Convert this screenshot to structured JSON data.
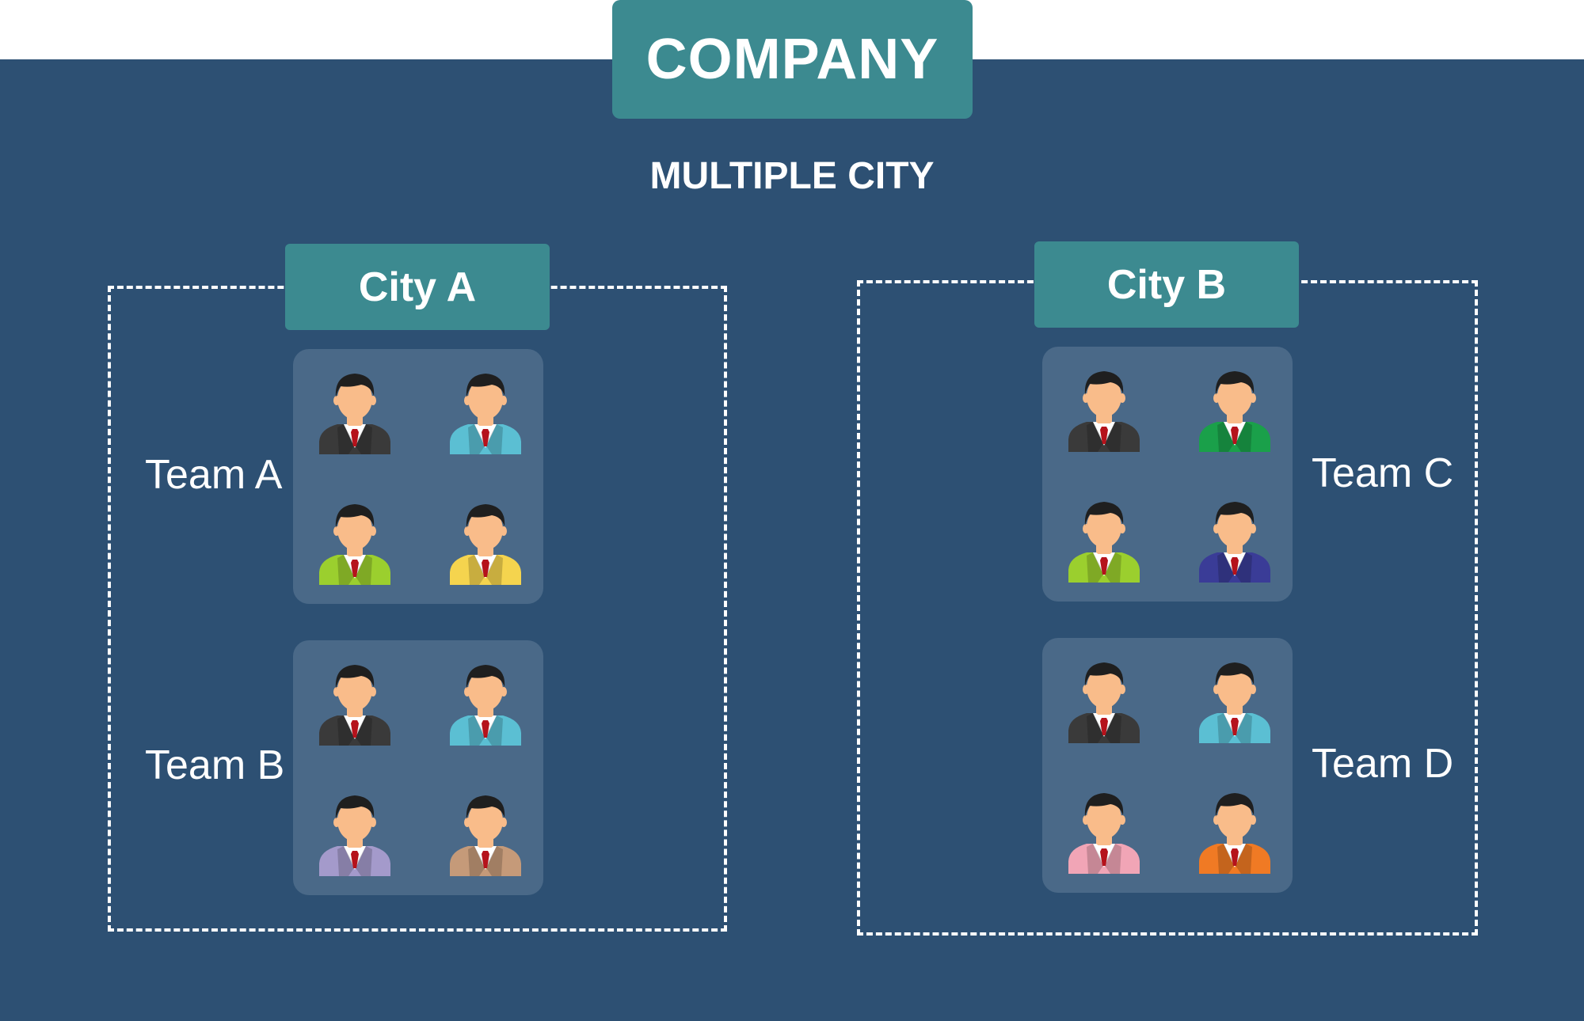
{
  "header": {
    "company": "COMPANY",
    "subtitle": "MULTIPLE CITY"
  },
  "colors": {
    "background": "#2d5073",
    "accent": "#3c8a90",
    "team_panel": "#4a6988",
    "skin": "#f9bc8a",
    "hair": "#1f1f1f",
    "tie": "#b5121b"
  },
  "cities": [
    {
      "name": "City A",
      "teams": [
        {
          "name": "Team A",
          "people": [
            {
              "icon": "person-icon",
              "suit_color": "#3a3a3a"
            },
            {
              "icon": "person-icon",
              "suit_color": "#5bbfd3"
            },
            {
              "icon": "person-icon",
              "suit_color": "#9bcf2e"
            },
            {
              "icon": "person-icon",
              "suit_color": "#f5d44e"
            }
          ]
        },
        {
          "name": "Team B",
          "people": [
            {
              "icon": "person-icon",
              "suit_color": "#3a3a3a"
            },
            {
              "icon": "person-icon",
              "suit_color": "#5bbfd3"
            },
            {
              "icon": "person-icon",
              "suit_color": "#a49acb"
            },
            {
              "icon": "person-icon",
              "suit_color": "#c59a79"
            }
          ]
        }
      ]
    },
    {
      "name": "City B",
      "teams": [
        {
          "name": "Team C",
          "people": [
            {
              "icon": "person-icon",
              "suit_color": "#3a3a3a"
            },
            {
              "icon": "person-icon",
              "suit_color": "#1aa04a"
            },
            {
              "icon": "person-icon",
              "suit_color": "#9bcf2e"
            },
            {
              "icon": "person-icon",
              "suit_color": "#3a3c97"
            }
          ]
        },
        {
          "name": "Team D",
          "people": [
            {
              "icon": "person-icon",
              "suit_color": "#3a3a3a"
            },
            {
              "icon": "person-icon",
              "suit_color": "#5bbfd3"
            },
            {
              "icon": "person-icon",
              "suit_color": "#f1a5b6"
            },
            {
              "icon": "person-icon",
              "suit_color": "#f07a24"
            }
          ]
        }
      ]
    }
  ]
}
